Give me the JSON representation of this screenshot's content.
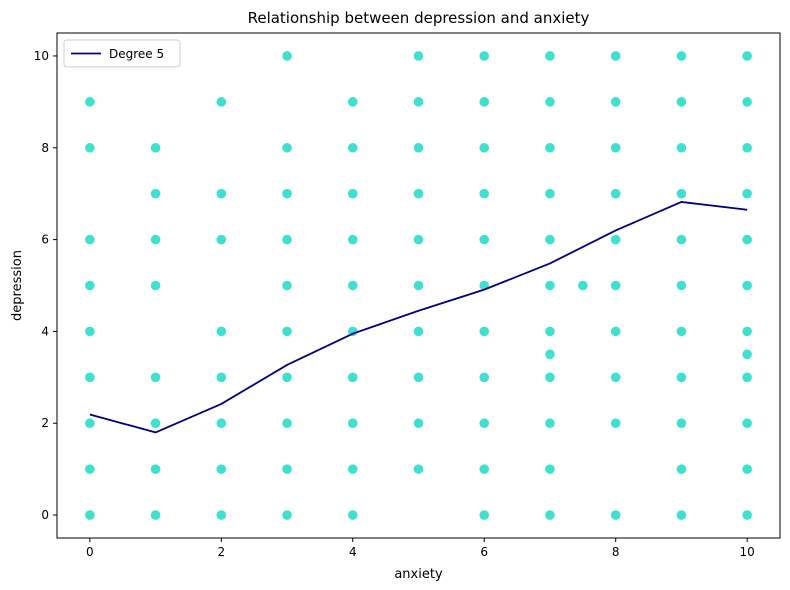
{
  "chart_data": {
    "type": "scatter",
    "title": "Relationship between depression and anxiety",
    "xlabel": "anxiety",
    "ylabel": "depression",
    "xlim": [
      -0.5,
      10.5
    ],
    "ylim": [
      -0.5,
      10.5
    ],
    "xticks": [
      0,
      2,
      4,
      6,
      8,
      10
    ],
    "yticks": [
      0,
      2,
      4,
      6,
      8,
      10
    ],
    "grid": false,
    "legend_position": "top-left",
    "colors": {
      "points": "#40e0d0",
      "fit_line": "#000080"
    },
    "series": [
      {
        "type": "scatter",
        "points": [
          [
            0,
            0
          ],
          [
            0,
            1
          ],
          [
            0,
            2
          ],
          [
            0,
            3
          ],
          [
            0,
            4
          ],
          [
            0,
            5
          ],
          [
            0,
            6
          ],
          [
            0,
            8
          ],
          [
            0,
            9
          ],
          [
            1,
            0
          ],
          [
            1,
            1
          ],
          [
            1,
            2
          ],
          [
            1,
            3
          ],
          [
            1,
            5
          ],
          [
            1,
            6
          ],
          [
            1,
            7
          ],
          [
            1,
            8
          ],
          [
            2,
            0
          ],
          [
            2,
            1
          ],
          [
            2,
            2
          ],
          [
            2,
            3
          ],
          [
            2,
            4
          ],
          [
            2,
            6
          ],
          [
            2,
            7
          ],
          [
            2,
            9
          ],
          [
            3,
            0
          ],
          [
            3,
            1
          ],
          [
            3,
            2
          ],
          [
            3,
            3
          ],
          [
            3,
            4
          ],
          [
            3,
            5
          ],
          [
            3,
            6
          ],
          [
            3,
            7
          ],
          [
            3,
            8
          ],
          [
            3,
            10
          ],
          [
            4,
            0
          ],
          [
            4,
            1
          ],
          [
            4,
            2
          ],
          [
            4,
            3
          ],
          [
            4,
            4
          ],
          [
            4,
            5
          ],
          [
            4,
            6
          ],
          [
            4,
            7
          ],
          [
            4,
            8
          ],
          [
            4,
            9
          ],
          [
            5,
            1
          ],
          [
            5,
            2
          ],
          [
            5,
            3
          ],
          [
            5,
            4
          ],
          [
            5,
            5
          ],
          [
            5,
            6
          ],
          [
            5,
            7
          ],
          [
            5,
            8
          ],
          [
            5,
            9
          ],
          [
            5,
            10
          ],
          [
            6,
            0
          ],
          [
            6,
            1
          ],
          [
            6,
            2
          ],
          [
            6,
            3
          ],
          [
            6,
            4
          ],
          [
            6,
            5
          ],
          [
            6,
            6
          ],
          [
            6,
            7
          ],
          [
            6,
            8
          ],
          [
            6,
            9
          ],
          [
            6,
            10
          ],
          [
            7,
            0
          ],
          [
            7,
            1
          ],
          [
            7,
            2
          ],
          [
            7,
            3
          ],
          [
            7,
            3.5
          ],
          [
            7,
            4
          ],
          [
            7,
            5
          ],
          [
            7,
            6
          ],
          [
            7,
            7
          ],
          [
            7,
            8
          ],
          [
            7,
            9
          ],
          [
            7,
            10
          ],
          [
            7.5,
            5
          ],
          [
            8,
            0
          ],
          [
            8,
            2
          ],
          [
            8,
            3
          ],
          [
            8,
            4
          ],
          [
            8,
            5
          ],
          [
            8,
            6
          ],
          [
            8,
            7
          ],
          [
            8,
            8
          ],
          [
            8,
            9
          ],
          [
            8,
            10
          ],
          [
            9,
            0
          ],
          [
            9,
            1
          ],
          [
            9,
            2
          ],
          [
            9,
            3
          ],
          [
            9,
            4
          ],
          [
            9,
            5
          ],
          [
            9,
            6
          ],
          [
            9,
            7
          ],
          [
            9,
            8
          ],
          [
            9,
            9
          ],
          [
            9,
            10
          ],
          [
            10,
            0
          ],
          [
            10,
            1
          ],
          [
            10,
            2
          ],
          [
            10,
            3
          ],
          [
            10,
            3.5
          ],
          [
            10,
            4
          ],
          [
            10,
            5
          ],
          [
            10,
            6
          ],
          [
            10,
            7
          ],
          [
            10,
            8
          ],
          [
            10,
            9
          ],
          [
            10,
            10
          ]
        ]
      },
      {
        "name": "Degree 5",
        "type": "line",
        "x": [
          0,
          1,
          2,
          3,
          4,
          5,
          6,
          7,
          8,
          9,
          10
        ],
        "y": [
          2.19,
          1.8,
          2.42,
          3.27,
          3.95,
          4.45,
          4.91,
          5.48,
          6.2,
          6.82,
          6.65
        ]
      }
    ]
  }
}
